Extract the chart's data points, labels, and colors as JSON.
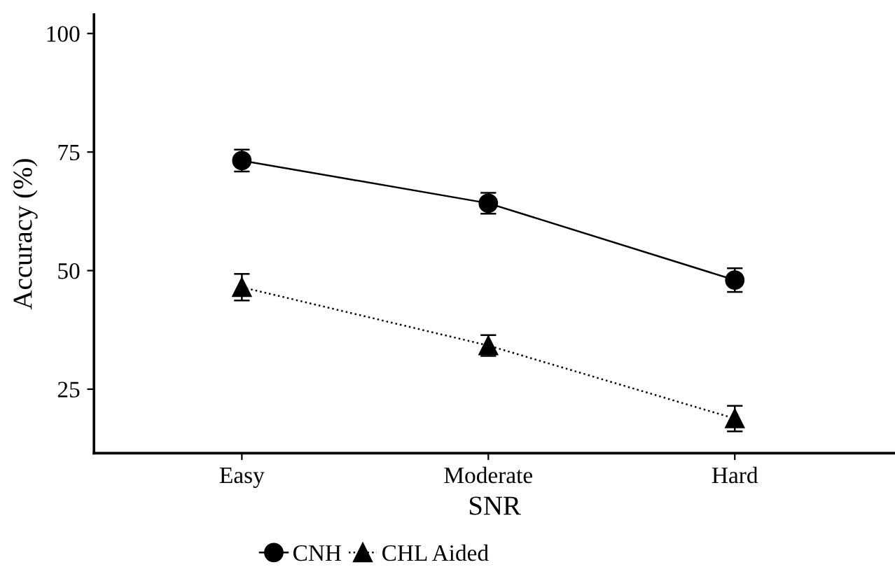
{
  "chart_data": {
    "type": "line",
    "xlabel": "SNR",
    "ylabel": "Accuracy (%)",
    "categories": [
      "Easy",
      "Moderate",
      "Hard"
    ],
    "series": [
      {
        "name": "CNH",
        "color": "#000000",
        "values": [
          73.2,
          64.2,
          48.0
        ],
        "errors": [
          2.3,
          2.2,
          2.5
        ],
        "marker": "circle",
        "line_style": "solid"
      },
      {
        "name": "CHL Aided",
        "color": "#000000",
        "values": [
          46.5,
          34.2,
          18.8
        ],
        "errors": [
          2.8,
          2.2,
          2.7
        ],
        "marker": "triangle",
        "line_style": "dotted"
      }
    ],
    "ylim": [
      11.5,
      104
    ],
    "yticks": [
      25,
      50,
      75,
      100
    ],
    "grid": false,
    "legend": "bottom"
  }
}
